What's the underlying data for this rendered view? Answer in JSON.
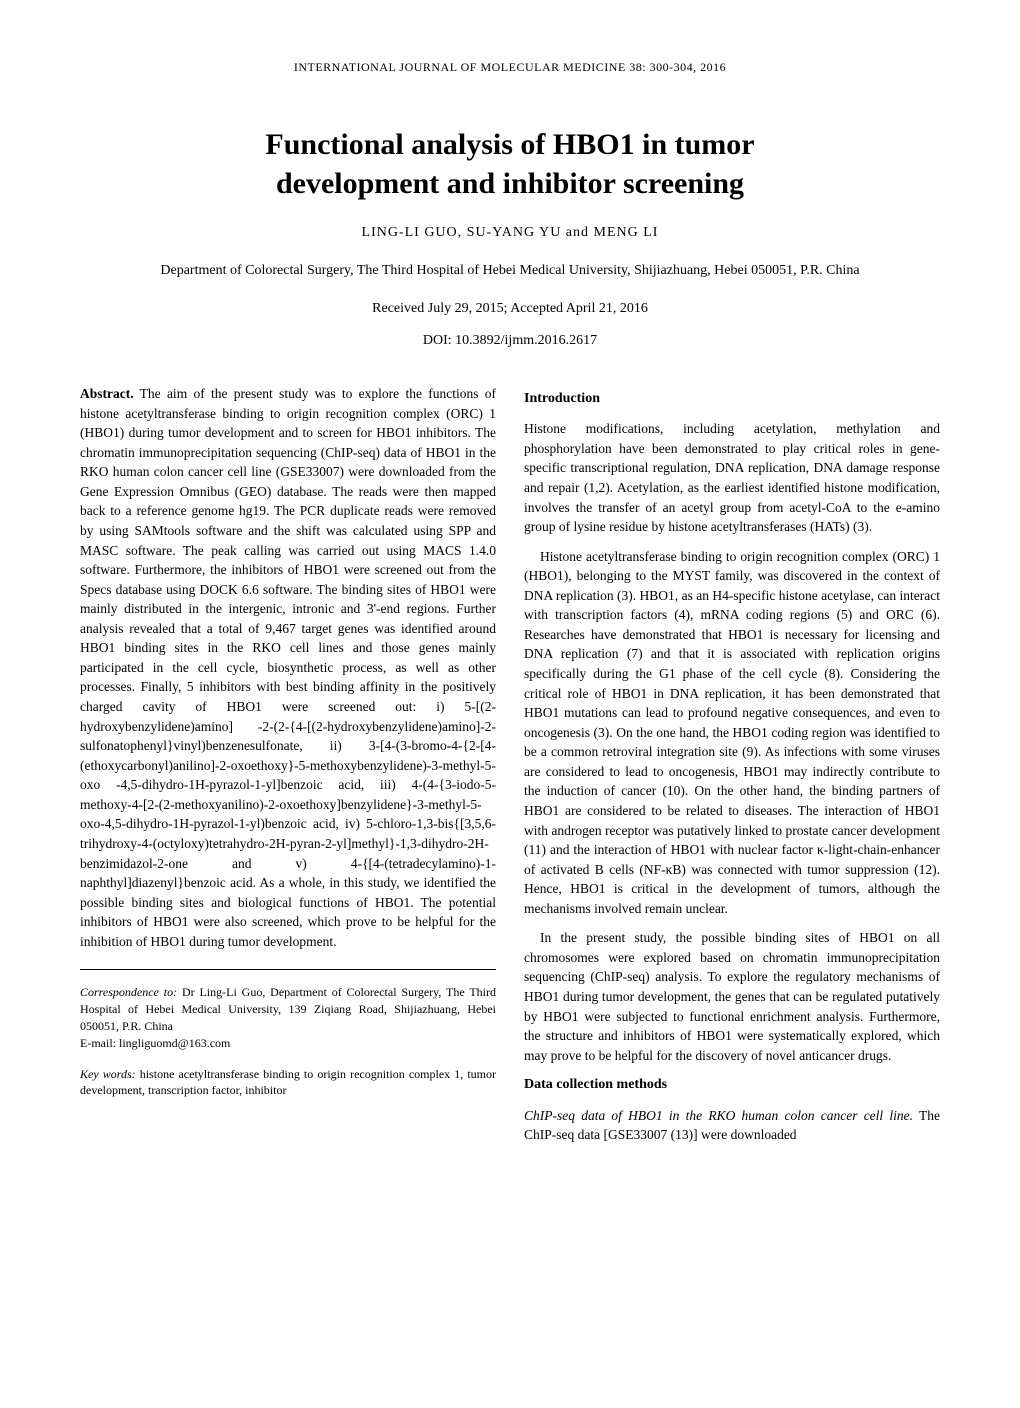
{
  "running_head": "INTERNATIONAL JOURNAL OF MOLECULAR MEDICINE 38: 300-304, 2016",
  "title_line1": "Functional analysis of HBO1 in tumor",
  "title_line2": "development and inhibitor screening",
  "authors": "LING-LI GUO,  SU-YANG YU  and  MENG LI",
  "affiliation": "Department of Colorectal Surgery, The Third Hospital of Hebei Medical University, Shijiazhuang, Hebei 050051, P.R. China",
  "dates": "Received July 29, 2015;  Accepted April 21, 2016",
  "doi": "DOI: 10.3892/ijmm.2016.2617",
  "abstract_label": "Abstract.",
  "abstract_body": " The aim of the present study was to explore the functions of histone acetyltransferase binding to origin recognition complex (ORC) 1 (HBO1) during tumor development and to screen for HBO1 inhibitors. The chromatin immunoprecipitation sequencing (ChIP-seq) data of HBO1 in the RKO human colon cancer cell line (GSE33007) were downloaded from the Gene Expression Omnibus (GEO) database. The reads were then mapped back to a reference genome hg19. The PCR duplicate reads were removed by using SAMtools software and the shift was calculated using SPP and MASC software. The peak calling was carried out using MACS 1.4.0 software. Furthermore, the inhibitors of HBO1 were screened out from the Specs database using DOCK 6.6 software. The binding sites of HBO1 were mainly distributed in the intergenic, intronic and 3'-end regions. Further analysis revealed that a total of 9,467 target genes was identified around HBO1 binding sites in the RKO cell lines and those genes mainly participated in the cell cycle, biosynthetic process, as well as other processes. Finally, 5 inhibitors with best binding affinity in the positively charged cavity of HBO1 were screened out: i) 5-[(2-hydroxybenzylidene)amino] -2-(2-{4-[(2-hydroxybenzylidene)amino]-2-sulfonatophenyl}vinyl)benzenesulfonate, ii) 3-[4-(3-bromo-4-{2-[4-(ethoxycarbonyl)anilino]-2-oxoethoxy}-5-methoxybenzylidene)-3-methyl-5-oxo -4,5-dihydro-1H-pyrazol-1-yl]benzoic acid, iii) 4-(4-{3-iodo-5- methoxy-4-[2-(2-methoxyanilino)-2-oxoethoxy]benzylidene}-3-methyl-5-oxo-4,5-dihydro-1H-pyrazol-1-yl)benzoic acid, iv) 5-chloro-1,3-bis{[3,5,6-trihydroxy-4-(octyloxy)tetrahydro-2H-pyran-2-yl]methyl}-1,3-dihydro-2H-benzimidazol-2-one and v) 4-{[4-(tetradecylamino)-1-naphthyl]diazenyl}benzoic acid. As a whole, in this study, we identified the possible binding sites and biological functions of HBO1. The potential inhibitors of HBO1 were also screened, which prove to be helpful for the inhibition of HBO1 during tumor development.",
  "intro_head": "Introduction",
  "intro_p1": "Histone modifications, including acetylation, methylation and phosphorylation have been demonstrated to play critical roles in gene-specific transcriptional regulation, DNA replication, DNA damage response and repair (1,2). Acetylation, as the earliest identified histone modification, involves the transfer of an acetyl group from acetyl-CoA to the e-amino group of lysine residue by histone acetyltransferases (HATs) (3).",
  "intro_p2": "Histone acetyltransferase binding to origin recognition complex (ORC) 1 (HBO1), belonging to the MYST family, was discovered in the context of DNA replication (3). HBO1, as an H4-specific histone acetylase, can interact with transcription factors (4), mRNA coding regions (5) and ORC (6). Researches have demonstrated that HBO1 is necessary for licensing and DNA replication (7) and that it is associated with replication origins specifically during the G1 phase of the cell cycle (8). Considering the critical role of HBO1 in DNA replication, it has been demonstrated that HBO1 mutations can lead to profound negative consequences, and even to oncogenesis (3). On the one hand, the HBO1 coding region was identified to be a common retroviral integration site (9). As infections with some viruses are considered to lead to oncogenesis, HBO1 may indirectly contribute to the induction of cancer (10). On the other hand, the binding partners of HBO1 are considered to be related to diseases. The interaction of HBO1 with androgen receptor was putatively linked to prostate cancer development (11) and the interaction of HBO1 with nuclear factor κ-light-chain-enhancer of activated B cells (NF-κB) was connected with tumor suppression (12). Hence, HBO1 is critical in the development of tumors, although the mechanisms involved remain unclear.",
  "intro_p3": "In the present study, the possible binding sites of HBO1 on all chromosomes were explored based on chromatin immunoprecipitation sequencing (ChIP-seq) analysis. To explore the regulatory mechanisms of HBO1 during tumor development, the genes that can be regulated putatively by HBO1 were subjected to functional enrichment analysis. Furthermore, the structure and inhibitors of HBO1 were systematically explored, which may prove to be helpful for the discovery of novel anticancer drugs.",
  "methods_head": "Data collection methods",
  "methods_p1_italic": "ChIP-seq data of HBO1 in the RKO human colon cancer cell line.",
  "methods_p1_rest": " The ChIP-seq data [GSE33007 (13)] were downloaded",
  "corr_label": "Correspondence to:",
  "corr_body": " Dr Ling-Li Guo, Department of Colorectal Surgery, The Third Hospital of Hebei Medical University, 139 Ziqiang Road, Shijiazhuang, Hebei 050051, P.R. China",
  "corr_email": "E-mail: lingliguomd@163.com",
  "keywords_label": "Key words:",
  "keywords_body": " histone acetyltransferase binding to origin recognition complex 1, tumor development, transcription factor, inhibitor"
}
